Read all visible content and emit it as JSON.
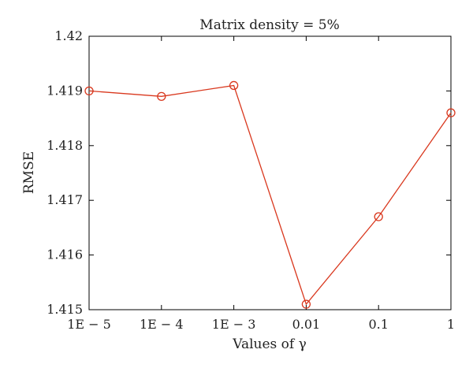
{
  "chart_data": {
    "type": "line",
    "title": "Matrix density = 5%",
    "xlabel": "Values of γ",
    "ylabel": "RMSE",
    "categories": [
      "1E − 5",
      "1E − 4",
      "1E − 3",
      "0.01",
      "0.1",
      "1"
    ],
    "series": [
      {
        "values": [
          1.419,
          1.4189,
          1.4191,
          1.4151,
          1.4167,
          1.4186
        ]
      }
    ],
    "ylim": [
      1.415,
      1.42
    ],
    "yticks": [
      "1.415",
      "1.416",
      "1.417",
      "1.418",
      "1.419",
      "1.42"
    ],
    "grid": false,
    "legend": "none",
    "colors": {
      "series": "#d9381e",
      "axis": "#000000"
    }
  }
}
